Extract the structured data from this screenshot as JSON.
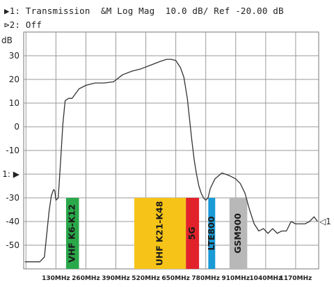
{
  "header": {
    "trace1": "▶1: Transmission  &M Log Mag  10.0 dB/ Ref -20.00 dB",
    "trace2": "⊳2: Off"
  },
  "chart_data": {
    "type": "line",
    "title": "",
    "xlabel": "",
    "ylabel": "dB",
    "ylim": [
      -60,
      40
    ],
    "xlim": [
      -10,
      1270
    ],
    "grid": true,
    "x_ticks": [
      {
        "value": 130,
        "label": "130MHz"
      },
      {
        "value": 260,
        "label": "260MHz"
      },
      {
        "value": 390,
        "label": "390MHz"
      },
      {
        "value": 520,
        "label": "520MHz"
      },
      {
        "value": 650,
        "label": "650MHz"
      },
      {
        "value": 780,
        "label": "780MHz"
      },
      {
        "value": 910,
        "label": "910MHz"
      },
      {
        "value": 1040,
        "label": "1040MHz"
      },
      {
        "value": 1170,
        "label": "1170MHz"
      }
    ],
    "y_ticks": [
      {
        "value": 30,
        "label": "30"
      },
      {
        "value": 20,
        "label": "20"
      },
      {
        "value": 10,
        "label": "10"
      },
      {
        "value": 0,
        "label": "0"
      },
      {
        "value": -10,
        "label": "-10"
      },
      {
        "value": -20,
        "label": "1: ▶"
      },
      {
        "value": -30,
        "label": "-30"
      },
      {
        "value": -40,
        "label": "-40"
      },
      {
        "value": -50,
        "label": "-50"
      }
    ],
    "ref_level": -20,
    "marker_label": "◁1",
    "bands": [
      {
        "label": "VHF K6-K12",
        "x0": 174,
        "x1": 230,
        "y_top": -30,
        "color": "#2aa84a",
        "text_color": "#1a1a1a"
      },
      {
        "label": "UHF K21-K48",
        "x0": 470,
        "x1": 694,
        "y_top": -30,
        "color": "#f6c418",
        "text_color": "#1a1a1a"
      },
      {
        "label": "5G",
        "x0": 694,
        "x1": 751,
        "y_top": -30,
        "color": "#e2222a",
        "text_color": "#1a1a1a"
      },
      {
        "label": "LTE800",
        "x0": 791,
        "x1": 821,
        "y_top": -30,
        "color": "#1a9ad6",
        "text_color": "#1a1a1a"
      },
      {
        "label": "GSM900",
        "x0": 883,
        "x1": 960,
        "y_top": -30,
        "color": "#b8b8b8",
        "text_color": "#1a1a1a"
      }
    ],
    "series": [
      {
        "color": "#333333",
        "x": [
          -5,
          20,
          45,
          60,
          80,
          100,
          110,
          120,
          125,
          130,
          140,
          150,
          160,
          170,
          185,
          200,
          230,
          260,
          300,
          340,
          380,
          420,
          460,
          500,
          540,
          580,
          610,
          630,
          650,
          670,
          685,
          700,
          710,
          720,
          730,
          740,
          750,
          760,
          770,
          780,
          790,
          800,
          820,
          850,
          880,
          910,
          930,
          950,
          970,
          990,
          1010,
          1030,
          1050,
          1070,
          1090,
          1110,
          1130,
          1150,
          1170,
          1190,
          1210,
          1230,
          1250,
          1265
        ],
        "values": [
          -57,
          -57,
          -57,
          -57,
          -55,
          -36,
          -29,
          -26.5,
          -27,
          -31,
          -30,
          -15,
          1,
          11,
          12,
          12,
          16,
          17.5,
          18.5,
          18.5,
          19,
          22,
          23.5,
          24.5,
          26,
          27.5,
          28.5,
          28.5,
          28,
          25,
          21,
          12,
          3,
          -6,
          -14,
          -20,
          -25,
          -28,
          -30,
          -31,
          -30,
          -26,
          -22,
          -19.5,
          -20.5,
          -22,
          -24,
          -28,
          -35,
          -41,
          -44,
          -43,
          -45,
          -43,
          -45,
          -44,
          -44,
          -40,
          -41,
          -41,
          -41,
          -40,
          -38,
          -40
        ]
      }
    ]
  }
}
